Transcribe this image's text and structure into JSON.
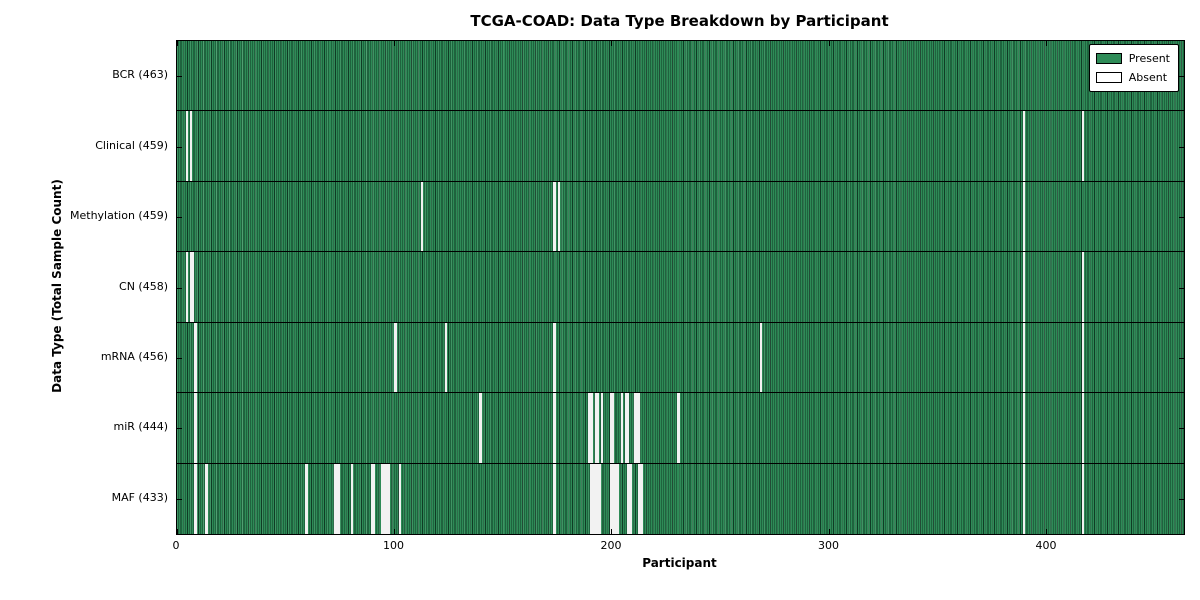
{
  "title": "TCGA-COAD: Data Type Breakdown by Participant",
  "xlabel": "Participant",
  "ylabel": "Data Type (Total Sample Count)",
  "legend": {
    "present_label": "Present",
    "absent_label": "Absent"
  },
  "colors": {
    "present": "#2E8B57",
    "absent": "#F2F2F2",
    "axis": "#000000"
  },
  "chart_data": {
    "type": "heatmap",
    "title": "TCGA-COAD: Data Type Breakdown by Participant",
    "xlabel": "Participant",
    "ylabel": "Data Type (Total Sample Count)",
    "total_participants": 463,
    "xlim": [
      0,
      463
    ],
    "x_ticks": [
      0,
      100,
      200,
      300,
      400
    ],
    "legend_position": "upper right",
    "grid": false,
    "cell_states": [
      "Present",
      "Absent"
    ],
    "rows": [
      {
        "label": "BCR (463)",
        "data_type": "BCR",
        "present_count": 463,
        "absent_participants": []
      },
      {
        "label": "Clinical (459)",
        "data_type": "Clinical",
        "present_count": 459,
        "absent_participants": [
          4,
          6,
          389,
          416
        ]
      },
      {
        "label": "Methylation (459)",
        "data_type": "Methylation",
        "present_count": 459,
        "absent_participants": [
          112,
          173,
          175,
          389
        ]
      },
      {
        "label": "CN (458)",
        "data_type": "CN",
        "present_count": 458,
        "absent_participants": [
          4,
          6,
          7,
          389,
          416
        ]
      },
      {
        "label": "mRNA (456)",
        "data_type": "mRNA",
        "present_count": 456,
        "absent_participants": [
          8,
          100,
          123,
          173,
          268,
          389,
          416
        ]
      },
      {
        "label": "miR (444)",
        "data_type": "miR",
        "present_count": 444,
        "absent_participants": [
          8,
          139,
          173,
          189,
          190,
          192,
          193,
          195,
          199,
          200,
          204,
          206,
          207,
          210,
          211,
          212,
          230,
          389,
          416
        ]
      },
      {
        "label": "MAF (433)",
        "data_type": "MAF",
        "present_count": 433,
        "absent_participants": [
          8,
          13,
          59,
          72,
          73,
          74,
          80,
          89,
          90,
          94,
          95,
          96,
          97,
          102,
          173,
          190,
          191,
          192,
          193,
          194,
          199,
          200,
          201,
          202,
          207,
          208,
          212,
          213,
          389,
          416
        ]
      }
    ]
  }
}
